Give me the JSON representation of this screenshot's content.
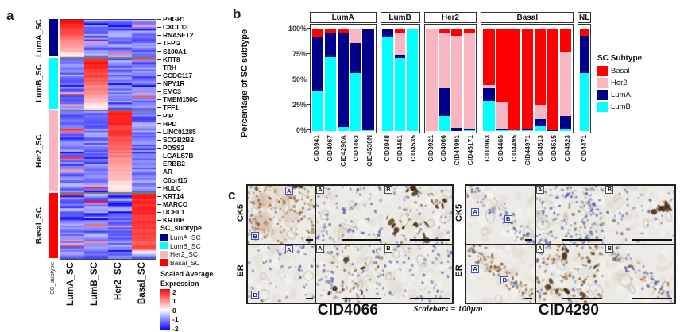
{
  "figure": {
    "panel_a_label": "a",
    "panel_b_label": "b",
    "panel_c_label": "c",
    "corner_mark": "ˇ"
  },
  "panel_a": {
    "annotation_axis_label": "SC_subtype",
    "row_groups": [
      "LumA_SC",
      "LumB_SC",
      "Her2_SC",
      "Basal_SC"
    ],
    "column_labels": [
      "LumA_SC",
      "LumB_SC",
      "Her2_SC",
      "Basal_SC"
    ],
    "gene_labels": [
      "PHGR1",
      "CXCL13",
      "RNASET2",
      "TFPI2",
      "S100A1",
      "KRT8",
      "TRH",
      "CCDC117",
      "NPY1R",
      "EMC3",
      "TMEM150C",
      "TFF1",
      "PIP",
      "HPD",
      "LINC01285",
      "SCGB2B2",
      "PDSS2",
      "LGALS7B",
      "ERBB2",
      "AR",
      "C6orf15",
      "HULC",
      "KRT14",
      "MARCO",
      "UCHL1",
      "KRT6B"
    ],
    "legend_subtype": {
      "title": "SC_subtype",
      "entries": [
        {
          "label": "LumA_SC",
          "color": "#00008B"
        },
        {
          "label": "LumB_SC",
          "color": "#00FFFF"
        },
        {
          "label": "Her2_SC",
          "color": "#F7B6C2"
        },
        {
          "label": "Basal_SC",
          "color": "#FF0000"
        }
      ]
    },
    "legend_expression": {
      "title_line1": "Scaled Average",
      "title_line2": "Expression",
      "ticks": [
        "2",
        "1",
        "0",
        "-1",
        "-2"
      ],
      "high_color": "#FF0000",
      "mid_color": "#FFFFFF",
      "low_color": "#0000FF"
    }
  },
  "panel_b": {
    "ylabel": "Percentage of SC subtype",
    "yticks": [
      "100%",
      "75%",
      "50%",
      "25%",
      "0%"
    ],
    "legend": {
      "title": "SC Subtype",
      "entries": [
        {
          "label": "Basal",
          "color": "#FF0000"
        },
        {
          "label": "Her2",
          "color": "#F7B6C2"
        },
        {
          "label": "LumA",
          "color": "#00008B"
        },
        {
          "label": "LumB",
          "color": "#00FFFF"
        }
      ]
    }
  },
  "panel_c": {
    "scalebar_note": "Scalebars = 100µm",
    "blocks": [
      {
        "title": "CID4066",
        "rows": [
          {
            "stain": "CK5",
            "images": [
              {
                "letters": [
                  {
                    "t": "A",
                    "x": 0.55,
                    "y": 0.02,
                    "style": "blue"
                  },
                  {
                    "t": "B",
                    "x": 0.05,
                    "y": 0.8,
                    "style": "blue"
                  }
                ],
                "scalebar": "short",
                "paint": {
                  "bl": 22,
                  "br": 130,
                  "wash": 1,
                  "dk": 3,
                  "dkRegion": "tr"
                }
              },
              {
                "letters": [
                  {
                    "t": "A",
                    "x": 0,
                    "y": 0,
                    "style": "dark"
                  }
                ],
                "scalebar": "long",
                "paint": {
                  "bl": 85,
                  "br": 0
                }
              },
              {
                "letters": [
                  {
                    "t": "B",
                    "x": 0,
                    "y": 0,
                    "style": "dark"
                  }
                ],
                "scalebar": "long",
                "paint": {
                  "bl": 50,
                  "br": 25,
                  "dk": 20,
                  "dkRegion": "spread"
                }
              }
            ]
          },
          {
            "stain": "ER",
            "images": [
              {
                "letters": [
                  {
                    "t": "A",
                    "x": 0.55,
                    "y": 0.02,
                    "style": "blue"
                  },
                  {
                    "t": "B",
                    "x": 0.05,
                    "y": 0.8,
                    "style": "blue"
                  }
                ],
                "scalebar": "short",
                "paint": {
                  "bl": 40,
                  "br": 3
                }
              },
              {
                "letters": [
                  {
                    "t": "A",
                    "x": 0,
                    "y": 0,
                    "style": "dark"
                  }
                ],
                "scalebar": "long",
                "paint": {
                  "bl": 70,
                  "br": 40,
                  "dk": 6,
                  "dkRegion": "spread"
                }
              },
              {
                "letters": [
                  {
                    "t": "B",
                    "x": 0,
                    "y": 0,
                    "style": "dark"
                  }
                ],
                "scalebar": "long",
                "paint": {
                  "bl": 60,
                  "br": 0
                }
              }
            ]
          }
        ]
      },
      {
        "title": "CID4290",
        "rows": [
          {
            "stain": "CK5",
            "images": [
              {
                "letters": [
                  {
                    "t": "A",
                    "x": 0.07,
                    "y": 0.38,
                    "style": "blue"
                  },
                  {
                    "t": "B",
                    "x": 0.55,
                    "y": 0.5,
                    "style": "blue"
                  }
                ],
                "scalebar": "short",
                "paint": {
                  "bl": 55,
                  "br": 12,
                  "diag": 1
                }
              },
              {
                "letters": [
                  {
                    "t": "A",
                    "x": 0,
                    "y": 0,
                    "style": "dark"
                  }
                ],
                "scalebar": "long",
                "paint": {
                  "bl": 150,
                  "br": 25
                }
              },
              {
                "letters": [
                  {
                    "t": "B",
                    "x": 0,
                    "y": 0,
                    "style": "dark"
                  }
                ],
                "scalebar": "long",
                "paint": {
                  "bl": 35,
                  "br": 6,
                  "dk": 8,
                  "dkRegion": "right"
                }
              }
            ]
          },
          {
            "stain": "ER",
            "images": [
              {
                "letters": [
                  {
                    "t": "A",
                    "x": 0.07,
                    "y": 0.35,
                    "style": "blue"
                  },
                  {
                    "t": "B",
                    "x": 0.5,
                    "y": 0.55,
                    "style": "blue"
                  }
                ],
                "scalebar": "short",
                "paint": {
                  "bl": 18,
                  "br": 90,
                  "diag": 1
                }
              },
              {
                "letters": [
                  {
                    "t": "A",
                    "x": 0,
                    "y": 0,
                    "style": "dark"
                  }
                ],
                "scalebar": "long",
                "paint": {
                  "bl": 55,
                  "br": 85,
                  "dk": 12,
                  "dkRegion": "spread"
                }
              },
              {
                "letters": [
                  {
                    "t": "B",
                    "x": 0,
                    "y": 0,
                    "style": "dark"
                  }
                ],
                "scalebar": "long",
                "paint": {
                  "bl": 45,
                  "br": 45,
                  "diag": 1
                }
              }
            ]
          }
        ]
      }
    ]
  },
  "chart_data": [
    {
      "type": "heatmap",
      "columns": [
        "LumA_SC",
        "LumB_SC",
        "Her2_SC",
        "Basal_SC"
      ],
      "value_scale": {
        "label": "Scaled Average Expression",
        "range": [
          -2,
          2
        ],
        "colormap": "red-white-blue"
      },
      "row_annotation": "SC_subtype",
      "row_blocks": [
        {
          "group": "LumA_SC",
          "color": "#00008B",
          "n_rows": 21,
          "hot_column": "LumA_SC",
          "marker_genes": [
            "PHGR1",
            "CXCL13",
            "RNASET2",
            "TFPI2",
            "S100A1"
          ]
        },
        {
          "group": "LumB_SC",
          "color": "#00FFFF",
          "n_rows": 29,
          "hot_column": "LumB_SC",
          "marker_genes": [
            "KRT8",
            "TRH",
            "CCDC117",
            "NPY1R",
            "EMC3",
            "TMEM150C"
          ]
        },
        {
          "group": "Her2_SC",
          "color": "#F7B6C2",
          "n_rows": 46,
          "hot_column": "Her2_SC",
          "marker_genes": [
            "TFF1",
            "PIP",
            "HPD",
            "LINC01285",
            "SCGB2B2",
            "PDSS2",
            "LGALS7B",
            "ERBB2",
            "AR",
            "C6orf15",
            "HULC"
          ]
        },
        {
          "group": "Basal_SC",
          "color": "#FF0000",
          "n_rows": 37,
          "hot_column": "Basal_SC",
          "marker_genes": [
            "KRT14",
            "MARCO",
            "UCHL1",
            "KRT6B"
          ]
        }
      ]
    },
    {
      "type": "bar",
      "stacked": true,
      "ylabel": "Percentage of SC subtype",
      "ylim": [
        0,
        100
      ],
      "yticks": [
        "0%",
        "25%",
        "50%",
        "75%",
        "100%"
      ],
      "stack_order_bottom_to_top": [
        "LumB",
        "LumA",
        "Her2",
        "Basal"
      ],
      "segment_colors": [
        "#00FFFF",
        "#00008B",
        "#F7B6C2",
        "#FF0000"
      ],
      "legend_position": "right",
      "facets": [
        {
          "label": "LumA",
          "bars": [
            {
              "id": "CID3941",
              "segments": [
                40,
                53,
                0,
                7
              ]
            },
            {
              "id": "CID4067",
              "segments": [
                73,
                24,
                0,
                3
              ]
            },
            {
              "id": "CID4290A",
              "segments": [
                4,
                93,
                0,
                3
              ]
            },
            {
              "id": "CID4463",
              "segments": [
                57,
                30,
                13,
                0
              ]
            },
            {
              "id": "CID4530N",
              "segments": [
                1,
                99,
                0,
                0
              ]
            }
          ]
        },
        {
          "label": "LumB",
          "bars": [
            {
              "id": "CID3948",
              "segments": [
                93,
                7,
                0,
                0
              ]
            },
            {
              "id": "CID4461",
              "segments": [
                72,
                3,
                21,
                4
              ]
            },
            {
              "id": "CID4535",
              "segments": [
                100,
                0,
                0,
                0
              ]
            }
          ]
        },
        {
          "label": "Her2",
          "bars": [
            {
              "id": "CID3921",
              "segments": [
                0,
                0,
                100,
                0
              ]
            },
            {
              "id": "CID4066",
              "segments": [
                15,
                27,
                55,
                3
              ]
            },
            {
              "id": "CID44991",
              "segments": [
                0,
                3,
                91,
                6
              ]
            },
            {
              "id": "CID45171",
              "segments": [
                1,
                1,
                95,
                3
              ]
            }
          ]
        },
        {
          "label": "Basal",
          "bars": [
            {
              "id": "CID3963",
              "segments": [
                30,
                12,
                3,
                55
              ]
            },
            {
              "id": "CID4465",
              "segments": [
                1,
                1,
                26,
                72
              ]
            },
            {
              "id": "CID4495",
              "segments": [
                1,
                0,
                0,
                99
              ]
            },
            {
              "id": "CID44971",
              "segments": [
                1,
                1,
                0,
                98
              ]
            },
            {
              "id": "CID4513",
              "segments": [
                5,
                7,
                14,
                74
              ]
            },
            {
              "id": "CID4515",
              "segments": [
                0,
                1,
                0,
                99
              ]
            },
            {
              "id": "CID4523",
              "segments": [
                2,
                13,
                62,
                23
              ]
            }
          ]
        },
        {
          "label": "NL",
          "bars": [
            {
              "id": "CID4471",
              "segments": [
                57,
                37,
                0,
                6
              ]
            }
          ]
        }
      ]
    }
  ]
}
